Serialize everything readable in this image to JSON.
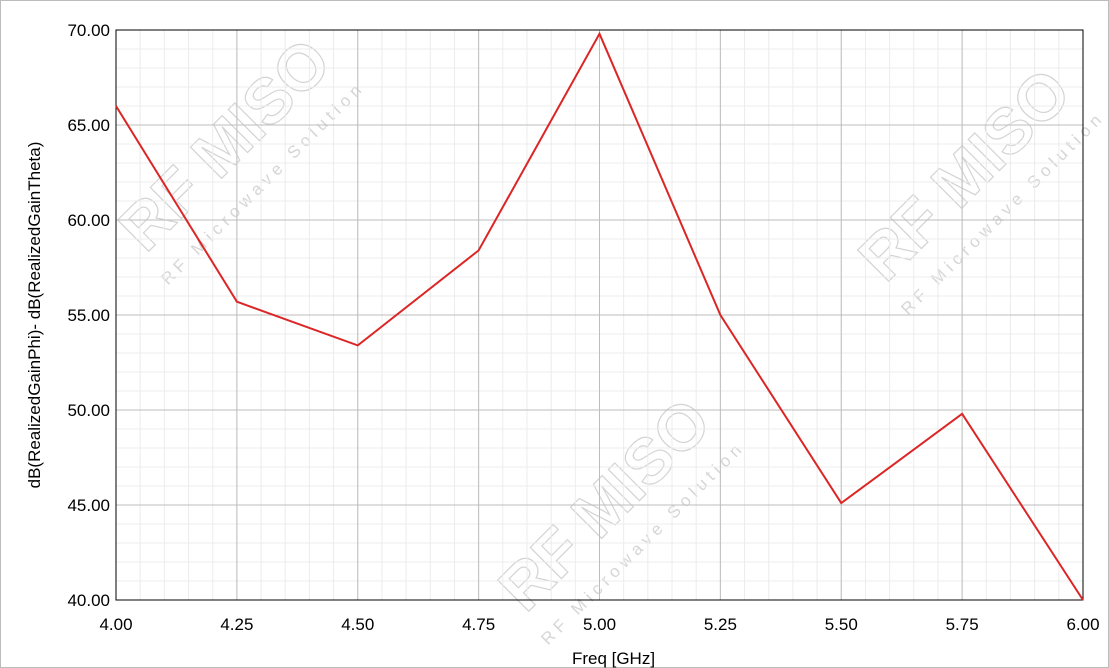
{
  "watermark": {
    "brand": "RF MISO",
    "tagline": "RF Microwave Solution"
  },
  "chart_data": {
    "type": "line",
    "title": "",
    "xlabel": "Freq [GHz]",
    "ylabel": "dB(RealizedGainPhi)- dB(RealizedGainTheta)",
    "xlim": [
      4.0,
      6.0
    ],
    "ylim": [
      40.0,
      70.0
    ],
    "x_ticks": [
      "4.00",
      "4.25",
      "4.50",
      "4.75",
      "5.00",
      "5.25",
      "5.50",
      "5.75",
      "6.00"
    ],
    "y_ticks": [
      "70.00",
      "65.00",
      "60.00",
      "55.00",
      "50.00",
      "45.00",
      "40.00"
    ],
    "grid": true,
    "line_color": "#dc2626",
    "series": [
      {
        "x": [
          4.0,
          4.25,
          4.5,
          4.75,
          5.0,
          5.25,
          5.5,
          5.75,
          6.0
        ],
        "y": [
          66.0,
          55.7,
          53.4,
          58.4,
          69.8,
          55.0,
          45.1,
          49.8,
          40.0
        ]
      }
    ]
  }
}
